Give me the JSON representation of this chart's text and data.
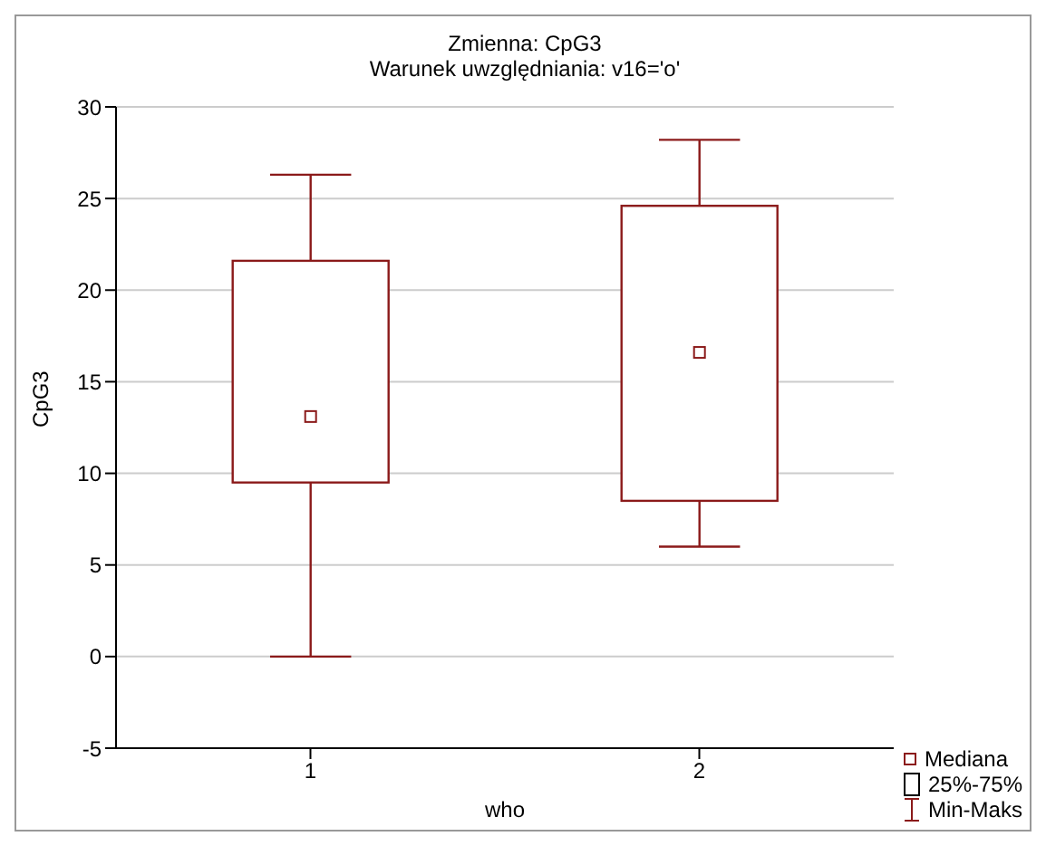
{
  "chart_data": {
    "type": "box",
    "title": "Zmienna:  CpG3",
    "subtitle": "Warunek uwzględniania: v16='o'",
    "xlabel": "who",
    "ylabel": "CpG3",
    "categories": [
      "1",
      "2"
    ],
    "boxes": [
      {
        "low": 0,
        "q1": 9.5,
        "median": 13.1,
        "q3": 21.6,
        "high": 26.3
      },
      {
        "low": 6.0,
        "q1": 8.5,
        "median": 16.6,
        "q3": 24.6,
        "high": 28.2
      }
    ],
    "color": "#8b1a1a",
    "ylim": [
      -5,
      30
    ],
    "yticks": [
      -5,
      0,
      5,
      10,
      15,
      20,
      25,
      30
    ],
    "grid": "y",
    "annotations": [
      "Mediana",
      "25%-75%",
      "Min-Maks"
    ]
  }
}
